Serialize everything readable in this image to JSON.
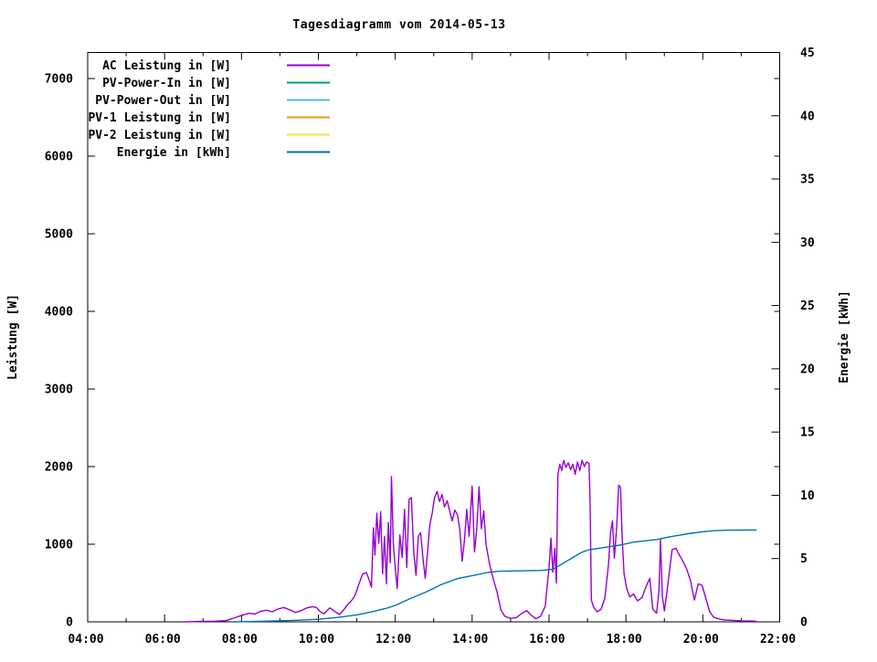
{
  "chart_data": {
    "type": "line",
    "title": "Tagesdiagramm vom 2014-05-13",
    "background_color": "#ffffff",
    "border_color": "#000000",
    "legend_position": "top-left-inside",
    "grid": false,
    "x_axis": {
      "label": "",
      "unit": "time",
      "range_hours": [
        4,
        22
      ],
      "tick_hours": [
        4,
        6,
        8,
        10,
        12,
        14,
        16,
        18,
        20,
        22
      ],
      "tick_labels": [
        "04:00",
        "06:00",
        "08:00",
        "10:00",
        "12:00",
        "14:00",
        "16:00",
        "18:00",
        "20:00",
        "22:00"
      ],
      "minor_tick_hours": [
        5,
        7,
        9,
        11,
        13,
        15,
        17,
        19,
        21
      ]
    },
    "y_left": {
      "label": "Leistung [W]",
      "range": [
        0,
        7330
      ],
      "ticks": [
        0,
        1000,
        2000,
        3000,
        4000,
        5000,
        6000,
        7000
      ],
      "tick_labels": [
        "0",
        "1000",
        "2000",
        "3000",
        "4000",
        "5000",
        "6000",
        "7000"
      ]
    },
    "y_right": {
      "label": "Energie [kWh]",
      "range": [
        0,
        45
      ],
      "ticks": [
        0,
        5,
        10,
        15,
        20,
        25,
        30,
        35,
        40,
        45
      ],
      "tick_labels": [
        "0",
        "5",
        "10",
        "15",
        "20",
        "25",
        "30",
        "35",
        "40",
        "45"
      ]
    },
    "series": [
      {
        "name": "AC Leistung in [W]",
        "key": "ac-leistung",
        "color": "#9400D3",
        "axis": "left",
        "points": [
          [
            6.55,
            0
          ],
          [
            6.9,
            5
          ],
          [
            7.3,
            8
          ],
          [
            7.6,
            15
          ],
          [
            7.75,
            40
          ],
          [
            7.9,
            65
          ],
          [
            8.05,
            90
          ],
          [
            8.2,
            110
          ],
          [
            8.35,
            100
          ],
          [
            8.5,
            135
          ],
          [
            8.65,
            150
          ],
          [
            8.8,
            130
          ],
          [
            8.95,
            165
          ],
          [
            9.1,
            185
          ],
          [
            9.25,
            155
          ],
          [
            9.4,
            120
          ],
          [
            9.55,
            145
          ],
          [
            9.7,
            180
          ],
          [
            9.85,
            195
          ],
          [
            9.95,
            185
          ],
          [
            10.05,
            130
          ],
          [
            10.15,
            105
          ],
          [
            10.3,
            180
          ],
          [
            10.45,
            125
          ],
          [
            10.55,
            95
          ],
          [
            10.65,
            150
          ],
          [
            10.75,
            215
          ],
          [
            10.85,
            265
          ],
          [
            10.95,
            335
          ],
          [
            11.05,
            480
          ],
          [
            11.15,
            615
          ],
          [
            11.25,
            635
          ],
          [
            11.32,
            540
          ],
          [
            11.38,
            445
          ],
          [
            11.43,
            1210
          ],
          [
            11.47,
            860
          ],
          [
            11.52,
            1400
          ],
          [
            11.57,
            1010
          ],
          [
            11.62,
            1420
          ],
          [
            11.67,
            620
          ],
          [
            11.72,
            1100
          ],
          [
            11.77,
            490
          ],
          [
            11.82,
            1280
          ],
          [
            11.87,
            760
          ],
          [
            11.9,
            1870
          ],
          [
            11.95,
            1000
          ],
          [
            12.0,
            690
          ],
          [
            12.05,
            430
          ],
          [
            12.12,
            1120
          ],
          [
            12.18,
            830
          ],
          [
            12.24,
            1450
          ],
          [
            12.3,
            700
          ],
          [
            12.36,
            1580
          ],
          [
            12.42,
            1600
          ],
          [
            12.48,
            900
          ],
          [
            12.54,
            600
          ],
          [
            12.6,
            1100
          ],
          [
            12.66,
            1150
          ],
          [
            12.72,
            820
          ],
          [
            12.78,
            560
          ],
          [
            12.84,
            900
          ],
          [
            12.9,
            1250
          ],
          [
            12.96,
            1400
          ],
          [
            13.02,
            1600
          ],
          [
            13.09,
            1680
          ],
          [
            13.15,
            1550
          ],
          [
            13.22,
            1640
          ],
          [
            13.28,
            1480
          ],
          [
            13.35,
            1560
          ],
          [
            13.42,
            1420
          ],
          [
            13.48,
            1300
          ],
          [
            13.55,
            1440
          ],
          [
            13.62,
            1380
          ],
          [
            13.68,
            1180
          ],
          [
            13.74,
            780
          ],
          [
            13.8,
            1050
          ],
          [
            13.86,
            1450
          ],
          [
            13.92,
            1100
          ],
          [
            14.0,
            1750
          ],
          [
            14.06,
            900
          ],
          [
            14.12,
            1200
          ],
          [
            14.18,
            1740
          ],
          [
            14.24,
            1200
          ],
          [
            14.3,
            1430
          ],
          [
            14.36,
            1000
          ],
          [
            14.45,
            750
          ],
          [
            14.55,
            550
          ],
          [
            14.65,
            380
          ],
          [
            14.75,
            150
          ],
          [
            14.85,
            70
          ],
          [
            15.0,
            45
          ],
          [
            15.15,
            55
          ],
          [
            15.3,
            110
          ],
          [
            15.42,
            145
          ],
          [
            15.55,
            80
          ],
          [
            15.65,
            40
          ],
          [
            15.78,
            70
          ],
          [
            15.9,
            200
          ],
          [
            16.0,
            700
          ],
          [
            16.05,
            1080
          ],
          [
            16.1,
            640
          ],
          [
            16.15,
            950
          ],
          [
            16.19,
            500
          ],
          [
            16.23,
            1900
          ],
          [
            16.28,
            2030
          ],
          [
            16.33,
            1950
          ],
          [
            16.38,
            2080
          ],
          [
            16.44,
            1990
          ],
          [
            16.5,
            2050
          ],
          [
            16.56,
            1960
          ],
          [
            16.62,
            2030
          ],
          [
            16.68,
            1900
          ],
          [
            16.74,
            2060
          ],
          [
            16.8,
            1950
          ],
          [
            16.86,
            2080
          ],
          [
            16.92,
            2000
          ],
          [
            16.98,
            2060
          ],
          [
            17.04,
            2040
          ],
          [
            17.07,
            1500
          ],
          [
            17.1,
            280
          ],
          [
            17.17,
            180
          ],
          [
            17.25,
            130
          ],
          [
            17.35,
            160
          ],
          [
            17.45,
            300
          ],
          [
            17.55,
            750
          ],
          [
            17.6,
            1150
          ],
          [
            17.65,
            1300
          ],
          [
            17.7,
            820
          ],
          [
            17.76,
            1230
          ],
          [
            17.81,
            1760
          ],
          [
            17.86,
            1730
          ],
          [
            17.9,
            1100
          ],
          [
            17.95,
            620
          ],
          [
            18.02,
            430
          ],
          [
            18.1,
            320
          ],
          [
            18.2,
            360
          ],
          [
            18.3,
            270
          ],
          [
            18.42,
            310
          ],
          [
            18.52,
            450
          ],
          [
            18.62,
            560
          ],
          [
            18.7,
            160
          ],
          [
            18.8,
            110
          ],
          [
            18.86,
            420
          ],
          [
            18.9,
            1060
          ],
          [
            18.95,
            320
          ],
          [
            19.0,
            140
          ],
          [
            19.1,
            520
          ],
          [
            19.2,
            930
          ],
          [
            19.3,
            950
          ],
          [
            19.38,
            870
          ],
          [
            19.48,
            780
          ],
          [
            19.58,
            680
          ],
          [
            19.68,
            530
          ],
          [
            19.78,
            280
          ],
          [
            19.88,
            490
          ],
          [
            19.98,
            470
          ],
          [
            20.08,
            300
          ],
          [
            20.18,
            130
          ],
          [
            20.28,
            60
          ],
          [
            20.4,
            40
          ],
          [
            20.55,
            25
          ],
          [
            20.75,
            20
          ],
          [
            21.0,
            12
          ],
          [
            21.2,
            10
          ],
          [
            21.4,
            8
          ]
        ]
      },
      {
        "name": "PV-Power-In in [W]",
        "key": "pv-power-in",
        "color": "#009E73",
        "axis": "left",
        "points": []
      },
      {
        "name": "PV-Power-Out in [W]",
        "key": "pv-power-out",
        "color": "#56B4E9",
        "axis": "left",
        "points": []
      },
      {
        "name": "PV-1 Leistung in [W]",
        "key": "pv-1-leistung",
        "color": "#E69F00",
        "axis": "left",
        "points": []
      },
      {
        "name": "PV-2 Leistung in [W]",
        "key": "pv-2-leistung",
        "color": "#F0E442",
        "axis": "left",
        "points": []
      },
      {
        "name": "Energie in [kWh]",
        "key": "energie",
        "color": "#0072B2",
        "axis": "right",
        "points": [
          [
            7.8,
            0
          ],
          [
            8.3,
            0.03
          ],
          [
            9.0,
            0.08
          ],
          [
            9.5,
            0.13
          ],
          [
            10.0,
            0.2
          ],
          [
            10.5,
            0.35
          ],
          [
            11.0,
            0.55
          ],
          [
            11.4,
            0.8
          ],
          [
            11.8,
            1.1
          ],
          [
            12.0,
            1.3
          ],
          [
            12.4,
            1.85
          ],
          [
            12.8,
            2.35
          ],
          [
            13.2,
            2.95
          ],
          [
            13.6,
            3.4
          ],
          [
            14.0,
            3.65
          ],
          [
            14.4,
            3.9
          ],
          [
            14.7,
            4.0
          ],
          [
            15.2,
            4.03
          ],
          [
            15.8,
            4.06
          ],
          [
            16.1,
            4.15
          ],
          [
            16.35,
            4.6
          ],
          [
            16.6,
            5.05
          ],
          [
            16.85,
            5.5
          ],
          [
            17.05,
            5.7
          ],
          [
            17.3,
            5.82
          ],
          [
            17.6,
            5.95
          ],
          [
            17.9,
            6.1
          ],
          [
            18.2,
            6.3
          ],
          [
            18.5,
            6.4
          ],
          [
            18.8,
            6.5
          ],
          [
            19.1,
            6.7
          ],
          [
            19.4,
            6.85
          ],
          [
            19.7,
            7.0
          ],
          [
            20.0,
            7.12
          ],
          [
            20.3,
            7.2
          ],
          [
            20.6,
            7.24
          ],
          [
            21.0,
            7.25
          ],
          [
            21.4,
            7.25
          ]
        ]
      }
    ]
  }
}
